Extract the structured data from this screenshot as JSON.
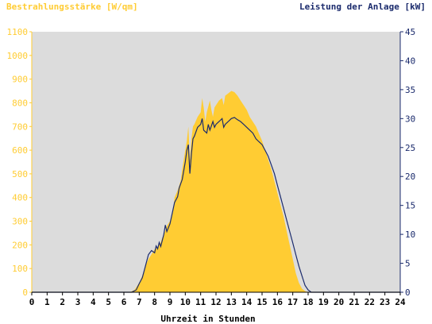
{
  "chart_data": {
    "type": "area",
    "left_axis_title": "Bestrahlungsstärke [W/qm]",
    "right_axis_title": "Leistung der Anlage [kW]",
    "xlabel": "Uhrzeit in Stunden",
    "x_ticks": [
      "0",
      "1",
      "2",
      "3",
      "4",
      "5",
      "6",
      "7",
      "8",
      "9",
      "10",
      "11",
      "12",
      "13",
      "14",
      "15",
      "16",
      "17",
      "18",
      "19",
      "20",
      "21",
      "22",
      "23",
      "24"
    ],
    "y_left_ticks": [
      "0",
      "100",
      "200",
      "300",
      "400",
      "500",
      "600",
      "700",
      "800",
      "900",
      "1000",
      "1100"
    ],
    "y_right_ticks": [
      "0",
      "5",
      "10",
      "15",
      "20",
      "25",
      "30",
      "35",
      "40",
      "45"
    ],
    "xlim": [
      0,
      24
    ],
    "ylim_left": [
      0,
      1100
    ],
    "ylim_right": [
      0,
      45
    ],
    "grid": false,
    "colors": {
      "plot_background": "#dcdcdc",
      "irradiance_fill": "#ffcc33",
      "power_line": "#1a2a6c",
      "left_axis_text": "#ffcc33",
      "right_axis_text": "#1a2a6c"
    },
    "series": [
      {
        "axis": "left",
        "style": "area",
        "x": [
          0,
          6.4,
          6.7,
          7.0,
          7.2,
          7.4,
          7.6,
          7.8,
          8.0,
          8.2,
          8.4,
          8.5,
          8.6,
          8.8,
          9.0,
          9.2,
          9.3,
          9.5,
          9.7,
          9.8,
          10.0,
          10.1,
          10.2,
          10.3,
          10.4,
          10.5,
          10.6,
          10.8,
          11.0,
          11.1,
          11.2,
          11.3,
          11.4,
          11.6,
          11.7,
          11.8,
          11.9,
          12.0,
          12.1,
          12.2,
          12.4,
          12.5,
          12.6,
          12.8,
          13.0,
          13.2,
          13.4,
          13.6,
          13.8,
          14.0,
          14.2,
          14.4,
          14.6,
          14.8,
          15.0,
          15.2,
          15.4,
          15.6,
          15.8,
          16.0,
          16.2,
          16.4,
          16.6,
          16.8,
          17.0,
          17.2,
          17.4,
          17.6,
          17.8,
          18.0,
          18.2,
          18.4,
          18.6,
          18.8,
          19.0,
          24
        ],
        "values": [
          0,
          0,
          10,
          40,
          70,
          110,
          140,
          160,
          180,
          190,
          210,
          230,
          240,
          280,
          300,
          340,
          400,
          430,
          470,
          520,
          600,
          640,
          700,
          560,
          650,
          700,
          710,
          740,
          760,
          820,
          780,
          720,
          760,
          810,
          770,
          740,
          780,
          790,
          800,
          810,
          820,
          790,
          830,
          840,
          850,
          845,
          830,
          810,
          790,
          770,
          740,
          720,
          700,
          670,
          640,
          600,
          560,
          520,
          470,
          420,
          370,
          320,
          260,
          200,
          140,
          80,
          40,
          15,
          5,
          0,
          0,
          0,
          0,
          0,
          0,
          0
        ]
      },
      {
        "axis": "right",
        "style": "line",
        "x": [
          0,
          6.5,
          6.8,
          7.0,
          7.2,
          7.4,
          7.6,
          7.8,
          8.0,
          8.1,
          8.2,
          8.3,
          8.4,
          8.6,
          8.7,
          8.8,
          9.0,
          9.1,
          9.3,
          9.5,
          9.6,
          9.8,
          10.0,
          10.1,
          10.2,
          10.3,
          10.4,
          10.5,
          10.6,
          10.8,
          11.0,
          11.1,
          11.2,
          11.4,
          11.5,
          11.6,
          11.8,
          11.9,
          12.0,
          12.2,
          12.4,
          12.5,
          12.6,
          12.8,
          13.0,
          13.2,
          13.4,
          13.6,
          13.8,
          14.0,
          14.2,
          14.4,
          14.6,
          14.8,
          15.0,
          15.2,
          15.4,
          15.6,
          15.8,
          16.0,
          16.2,
          16.4,
          16.6,
          16.8,
          17.0,
          17.2,
          17.4,
          17.6,
          17.8,
          18.0,
          18.2,
          18.4,
          18.6,
          19.0,
          24
        ],
        "values": [
          0,
          0,
          0.4,
          1.5,
          2.5,
          4.5,
          6.5,
          7.2,
          6.8,
          8.0,
          7.5,
          8.6,
          7.9,
          10.0,
          11.6,
          10.5,
          11.8,
          13.0,
          15.5,
          16.5,
          18.0,
          19.5,
          22.5,
          24.5,
          25.5,
          20.5,
          24.0,
          26.5,
          27.0,
          28.5,
          29.0,
          30.0,
          28.0,
          27.5,
          29.0,
          28.0,
          29.5,
          28.5,
          29.0,
          29.5,
          30.0,
          28.5,
          29.0,
          29.5,
          30.0,
          30.2,
          29.8,
          29.5,
          29.0,
          28.5,
          28.0,
          27.5,
          26.5,
          26.0,
          25.5,
          24.5,
          23.5,
          22.0,
          20.5,
          18.5,
          16.5,
          14.5,
          12.5,
          10.5,
          8.5,
          6.5,
          4.5,
          2.8,
          1.2,
          0.4,
          0,
          0,
          0,
          0,
          0
        ]
      }
    ]
  }
}
